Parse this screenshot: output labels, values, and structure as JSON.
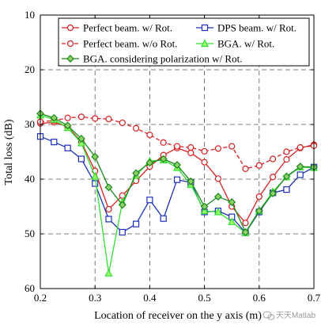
{
  "chart_data": {
    "type": "line",
    "xlabel": "Location of receiver on the y axis (m)",
    "ylabel": "Total loss (dB)",
    "xlim": [
      0.2,
      0.7
    ],
    "ylim": [
      60,
      10
    ],
    "y_inverted": true,
    "xticks": [
      "0.2",
      "0.3",
      "0.4",
      "0.5",
      "0.6",
      "0.7"
    ],
    "yticks": [
      "10",
      "20",
      "30",
      "40",
      "50",
      "60"
    ],
    "grid": true,
    "legend_position": "top",
    "series": [
      {
        "name": "Perfect beam. w/ Rot.",
        "color": "#d62020",
        "marker": "circle-open",
        "dashed": false,
        "x": [
          0.2,
          0.225,
          0.25,
          0.275,
          0.3,
          0.325,
          0.35,
          0.375,
          0.4,
          0.425,
          0.45,
          0.475,
          0.5,
          0.525,
          0.55,
          0.575,
          0.6,
          0.625,
          0.65,
          0.675,
          0.7
        ],
        "y": [
          29.8,
          29.6,
          30.4,
          33.2,
          38.5,
          45.5,
          43.0,
          40.3,
          37.7,
          35.6,
          34.3,
          35.2,
          36.9,
          39.9,
          45.0,
          48.0,
          43.2,
          39.6,
          36.4,
          34.3,
          33.7
        ]
      },
      {
        "name": "Perfect beam. w/o Rot.",
        "color": "#d62020",
        "marker": "circle-open",
        "dashed": true,
        "x": [
          0.2,
          0.225,
          0.25,
          0.275,
          0.3,
          0.325,
          0.35,
          0.375,
          0.4,
          0.425,
          0.45,
          0.475,
          0.5,
          0.525,
          0.55,
          0.575,
          0.6,
          0.625,
          0.65,
          0.675,
          0.7
        ],
        "y": [
          29.5,
          29.3,
          28.8,
          28.6,
          28.9,
          29.0,
          29.7,
          30.7,
          31.9,
          33.3,
          34.0,
          34.2,
          34.9,
          34.4,
          34.0,
          38.1,
          37.5,
          36.3,
          35.0,
          34.2,
          33.9
        ]
      },
      {
        "name": "DPS beam. w/ Rot.",
        "color": "#1c2fb8",
        "marker": "square-open",
        "dashed": false,
        "x": [
          0.2,
          0.225,
          0.25,
          0.275,
          0.3,
          0.325,
          0.35,
          0.375,
          0.4,
          0.425,
          0.45,
          0.475,
          0.5,
          0.525,
          0.55,
          0.575,
          0.6,
          0.625,
          0.65,
          0.675,
          0.7
        ],
        "y": [
          32.2,
          33.2,
          34.3,
          36.3,
          40.8,
          47.3,
          49.7,
          48.2,
          43.8,
          47.2,
          40.1,
          40.6,
          46.0,
          45.8,
          46.9,
          49.8,
          46.0,
          42.5,
          41.9,
          39.2,
          37.8
        ]
      },
      {
        "name": "BGA. w/ Rot.",
        "color": "#33dd33",
        "marker": "triangle-open",
        "dashed": false,
        "x": [
          0.2,
          0.225,
          0.25,
          0.275,
          0.3,
          0.325,
          0.35,
          0.375,
          0.4,
          0.425,
          0.45,
          0.475,
          0.5,
          0.525,
          0.55,
          0.575,
          0.6,
          0.625,
          0.65,
          0.675,
          0.7
        ],
        "y": [
          28.3,
          29.1,
          30.6,
          33.4,
          39.5,
          57.2,
          44.2,
          39.3,
          36.7,
          36.5,
          37.9,
          41.0,
          45.8,
          46.0,
          47.8,
          49.8,
          45.8,
          42.3,
          39.6,
          37.8,
          37.9
        ]
      },
      {
        "name": "BGA. considering polarization w/ Rot.",
        "color": "#1a8a1a",
        "marker": "diamond-open",
        "dashed": false,
        "x": [
          0.2,
          0.225,
          0.25,
          0.275,
          0.3,
          0.325,
          0.35,
          0.375,
          0.4,
          0.425,
          0.45,
          0.475,
          0.5,
          0.525,
          0.55,
          0.575,
          0.6,
          0.625,
          0.65,
          0.675,
          0.7
        ],
        "y": [
          28.0,
          28.8,
          30.2,
          32.6,
          35.9,
          41.5,
          44.7,
          38.9,
          37.0,
          36.3,
          37.4,
          40.4,
          45.0,
          43.2,
          44.2,
          49.7,
          45.8,
          42.6,
          39.5,
          37.7,
          37.8
        ]
      }
    ]
  },
  "watermark": {
    "icon": "wechat-icon",
    "text": "天天Matlab"
  }
}
